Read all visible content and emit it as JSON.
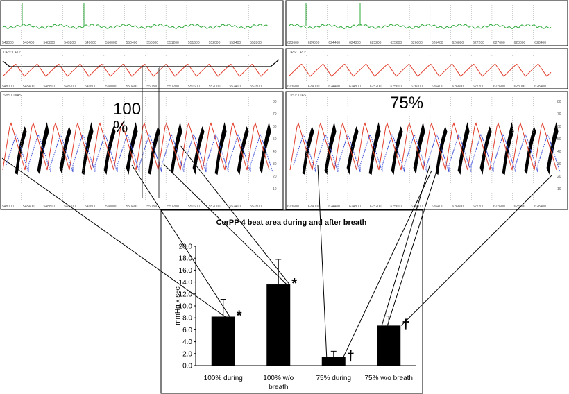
{
  "panels": {
    "top_left_label": "",
    "mid_left_label": "DPS: CPD:",
    "bot_left_label": "SYST DIAS",
    "top_right_label": "",
    "mid_right_label": "DPS: CPD:",
    "bot_right_label": "D/ST: DIAS",
    "pct_100_a": "100",
    "pct_100_b": "%",
    "pct_75": "75%",
    "speed_left": "200 mmHg/Div",
    "speed_right": "200 mmHg/Div",
    "mmhg_label": "mmHg",
    "x_ticks_left": [
      "548000",
      "548400",
      "548800",
      "549200",
      "549600",
      "550000",
      "550400",
      "550800",
      "551200",
      "551600",
      "552000",
      "552400",
      "552800"
    ],
    "x_ticks_right": [
      "623600",
      "624000",
      "624400",
      "624800",
      "625200",
      "625600",
      "626000",
      "626400",
      "626800",
      "627200",
      "627600",
      "628000",
      "628400"
    ],
    "y_ticks_wave": [
      "80",
      "70",
      "60",
      "50",
      "40",
      "30",
      "20",
      "10"
    ]
  },
  "chart_data": {
    "type": "bar",
    "title": "CerPP 4 beat area during and after breath",
    "ylabel": "mmHg x sec",
    "xlabel": "",
    "ylim": [
      0,
      20
    ],
    "yticks": [
      "0.0",
      "2.0",
      "4.0",
      "6.0",
      "8.0",
      "10.0",
      "12.0",
      "14.0",
      "16.0",
      "18.0",
      "20.0"
    ],
    "categories": [
      "100% during",
      "100% w/o breath",
      "75% during",
      "75% w/o breath"
    ],
    "values": [
      8.2,
      13.6,
      1.4,
      6.7
    ],
    "errors": [
      2.9,
      4.2,
      1.0,
      1.6
    ],
    "markers": [
      "*",
      "*",
      "†",
      "†"
    ],
    "bar_color": "#000000"
  }
}
